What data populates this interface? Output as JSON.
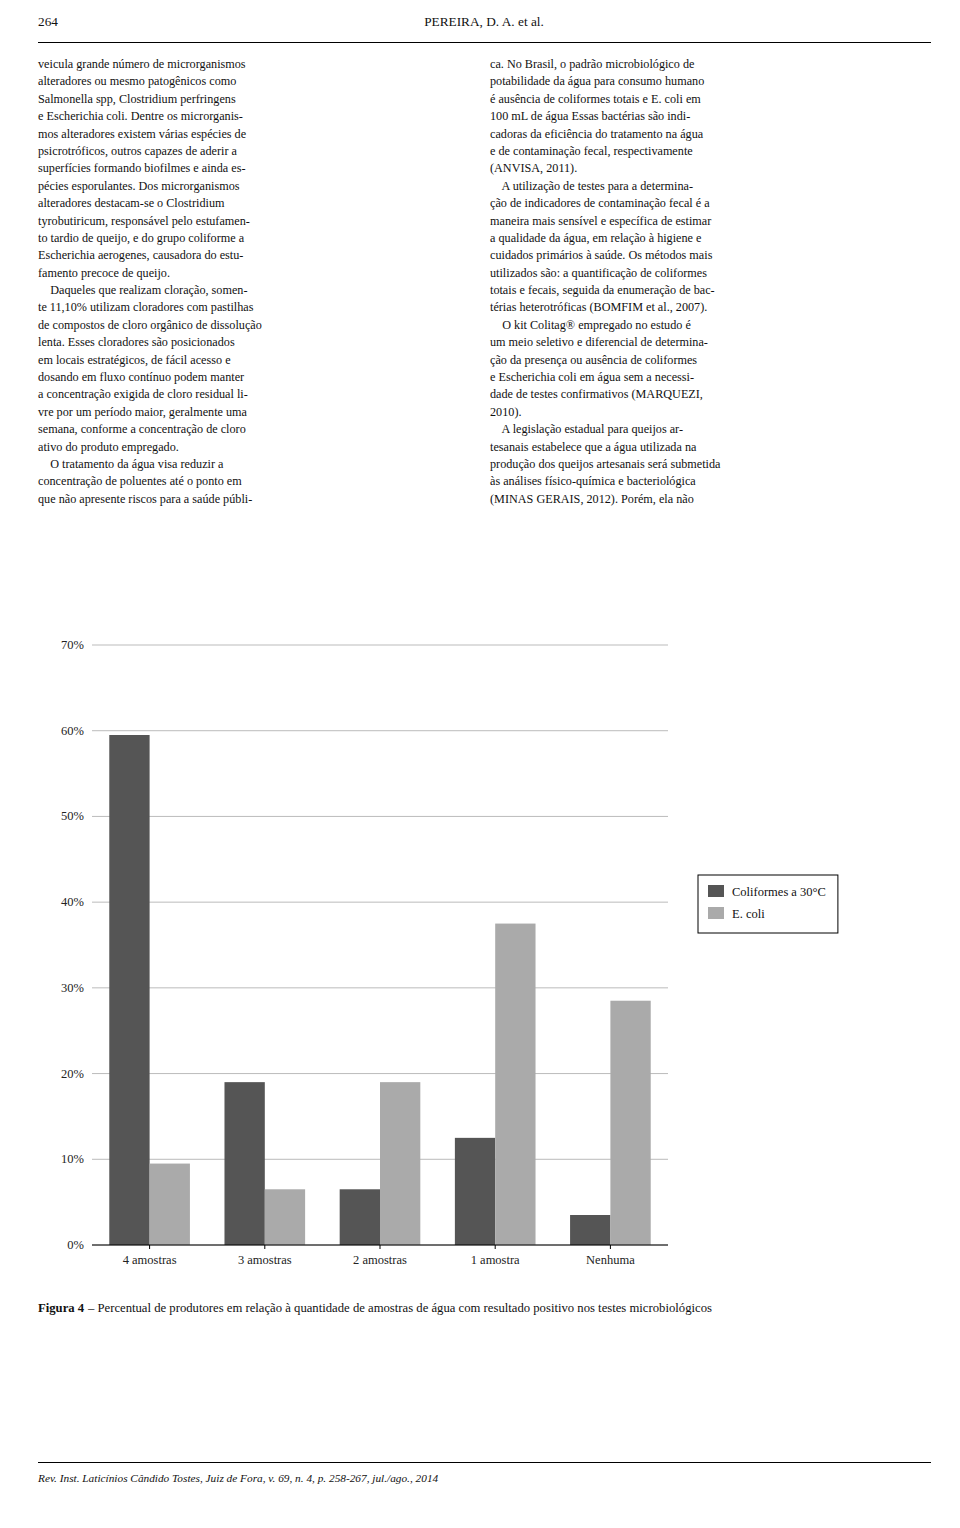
{
  "header_left": "264",
  "header_right": "PEREIRA, D. A. et al.",
  "body_columns": [
    [
      "veicula grande número de microrganismos",
      "alteradores ou mesmo patogênicos como",
      "Salmonella spp, Clostridium perfringens",
      "e Escherichia coli. Dentre os microrganis-",
      "mos alteradores existem várias espécies de",
      "psicrotróficos, outros capazes de aderir a",
      "superfícies formando biofilmes e ainda es-",
      "pécies esporulantes. Dos microrganismos",
      "alteradores destacam-se o Clostridium",
      "tyrobutiricum, responsável pelo estufamen-",
      "to tardio de queijo, e do grupo coliforme a",
      "Escherichia aerogenes, causadora do estu-",
      "famento precoce de queijo.",
      "    Daqueles que realizam cloração, somen-",
      "te 11,10% utilizam cloradores com pastilhas",
      "de compostos de cloro orgânico de dissolução",
      "lenta. Esses cloradores são posicionados",
      "em locais estratégicos, de fácil acesso e",
      "dosando em fluxo contínuo podem manter",
      "a concentração exigida de cloro residual li-",
      "vre por um período maior, geralmente uma",
      "semana, conforme a concentração de cloro",
      "ativo do produto empregado.",
      "    O tratamento da água visa reduzir a",
      "concentração de poluentes até o ponto em",
      "que não apresente riscos para a saúde públi-"
    ],
    [
      "ca. No Brasil, o padrão microbiológico de",
      "potabilidade da água para consumo humano",
      "é ausência de coliformes totais e E. coli em",
      "100 mL de água Essas bactérias são indi-",
      "cadoras da eficiência do tratamento na água",
      "e de contaminação fecal, respectivamente",
      "(ANVISA, 2011).",
      "    A utilização de testes para a determina-",
      "ção de indicadores de contaminação fecal é a",
      "maneira mais sensível e específica de estimar",
      "a qualidade da água, em relação à higiene e",
      "cuidados primários à saúde. Os métodos mais",
      "utilizados são: a quantificação de coliformes",
      "totais e fecais, seguida da enumeração de bac-",
      "térias heterotróficas (BOMFIM et al., 2007).",
      "    O kit Colitag® empregado no estudo é",
      "um meio seletivo e diferencial de determina-",
      "ção da presença ou ausência de coliformes",
      "e Escherichia coli em água sem a necessi-",
      "dade de testes confirmativos (MARQUEZI,",
      "2010).",
      "    A legislação estadual para queijos ar-",
      "tesanais estabelece que a água utilizada na",
      "produção dos queijos artesanais será submetida",
      "às análises físico-química e bacteriológica",
      "(MINAS GERAIS, 2012). Porém, ela não"
    ]
  ],
  "chart_data": {
    "type": "bar",
    "categories": [
      "4 amostras",
      "3 amostras",
      "2 amostras",
      "1 amostra",
      "Nenhuma"
    ],
    "series": [
      {
        "name": "Coliformes a 30°C",
        "color": "#555555",
        "values": [
          59.5,
          19.0,
          6.5,
          12.5,
          3.5
        ]
      },
      {
        "name": "E. coli",
        "color": "#aaaaaa",
        "values": [
          9.5,
          6.5,
          19.0,
          37.5,
          28.5
        ]
      }
    ],
    "ylim": [
      0,
      70
    ],
    "yticks": [
      {
        "value": 0,
        "label": "0%"
      },
      {
        "value": 10,
        "label": "10%"
      },
      {
        "value": 20,
        "label": "20%"
      },
      {
        "value": 30,
        "label": "30%"
      },
      {
        "value": 40,
        "label": "40%"
      },
      {
        "value": 50,
        "label": "50%"
      },
      {
        "value": 60,
        "label": "60%"
      },
      {
        "value": 70,
        "label": "70%"
      }
    ],
    "grid": true,
    "legend": "right"
  },
  "caption_label": "Figura 4",
  "caption_text": "– Percentual de produtores em relação à quantidade de amostras de água com resultado positivo nos testes microbiológicos",
  "footer": "Rev. Inst. Laticínios Cândido Tostes, Juiz de Fora, v. 69, n. 4, p. 258-267, jul./ago., 2014"
}
